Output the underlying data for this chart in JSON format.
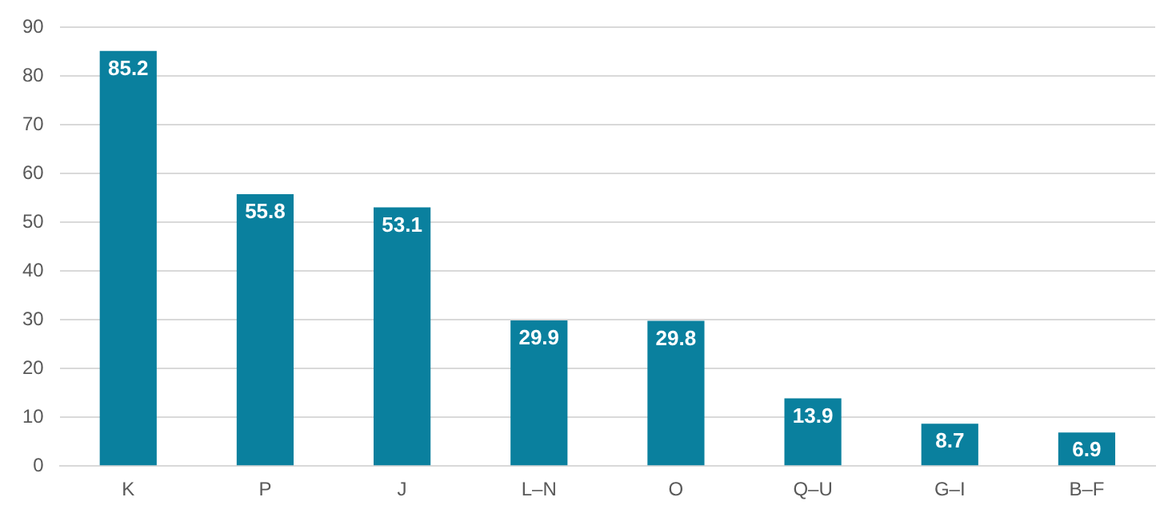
{
  "chart_data": {
    "type": "bar",
    "categories": [
      "K",
      "P",
      "J",
      "L–N",
      "O",
      "Q–U",
      "G–I",
      "B–F"
    ],
    "values": [
      85.2,
      55.8,
      53.1,
      29.9,
      29.8,
      13.9,
      8.7,
      6.9
    ],
    "color": "#0a809e",
    "ylim": [
      0,
      90
    ],
    "yticks": [
      0,
      10,
      20,
      30,
      40,
      50,
      60,
      70,
      80,
      90
    ],
    "grid": "y",
    "data_labels": true,
    "legend": false
  }
}
